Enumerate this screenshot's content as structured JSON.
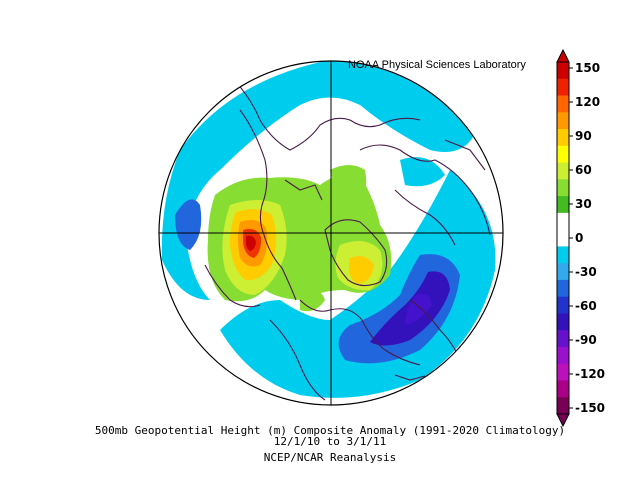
{
  "header": {
    "credit": "NOAA Physical Sciences Laboratory"
  },
  "caption": {
    "line1": "500mb Geopotential Height (m) Composite Anomaly (1991-2020 Climatology)",
    "line2": "12/1/10  to 3/1/11",
    "line3": "NCEP/NCAR Reanalysis"
  },
  "colorbar": {
    "ticks": [
      "150",
      "120",
      "90",
      "60",
      "30",
      "0",
      "-30",
      "-60",
      "-90",
      "-120",
      "-150"
    ],
    "colors": [
      "#cc0000",
      "#ee2200",
      "#ff6600",
      "#ff9900",
      "#ffcc00",
      "#ffff00",
      "#ccee33",
      "#88dd33",
      "#44bb22",
      "#ffffff",
      "#ffffff",
      "#00ccee",
      "#33aaee",
      "#2266dd",
      "#2233cc",
      "#3311bb",
      "#6611cc",
      "#9911cc",
      "#bb11bb",
      "#aa0088",
      "#770055"
    ]
  },
  "map_colors": {
    "ocean_bg": "#ffffff",
    "coast": "#4a1a4a",
    "pos_high": "#cc0000",
    "neg_low": "#3311bb"
  }
}
